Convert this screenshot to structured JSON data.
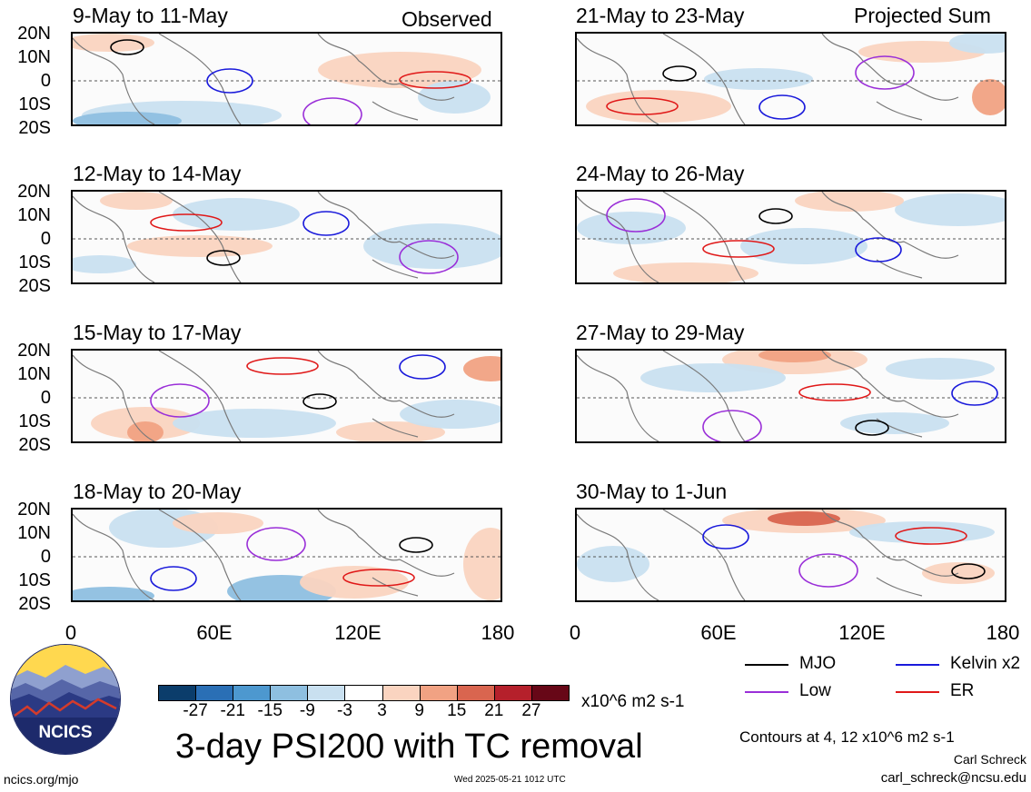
{
  "corner_labels": {
    "left": "Observed",
    "right": "Projected Sum"
  },
  "lat_ticks": [
    "20N",
    "10N",
    "0",
    "10S",
    "20S"
  ],
  "lon_ticks": [
    "0",
    "60E",
    "120E",
    "180"
  ],
  "panels": [
    {
      "title": "9-May to 11-May"
    },
    {
      "title": "21-May to 23-May"
    },
    {
      "title": "12-May to 14-May"
    },
    {
      "title": "24-May to 26-May"
    },
    {
      "title": "15-May to 17-May"
    },
    {
      "title": "27-May to 29-May"
    },
    {
      "title": "18-May to 20-May"
    },
    {
      "title": "30-May to 1-Jun"
    }
  ],
  "colorbar": {
    "colors": [
      "#0b3d6b",
      "#2a6fb5",
      "#4d98cf",
      "#8ebfe0",
      "#c9e0f0",
      "#ffffff",
      "#fad4c0",
      "#f1a283",
      "#d9654f",
      "#b5202b",
      "#670717"
    ],
    "labels": [
      "-27",
      "-21",
      "-15",
      "-9",
      "-3",
      "3",
      "9",
      "15",
      "21",
      "27"
    ],
    "units": "x10^6 m2 s-1"
  },
  "legend": [
    {
      "name": "MJO",
      "color": "#000000"
    },
    {
      "name": "Kelvin x2",
      "color": "#1a1adb"
    },
    {
      "name": "Low",
      "color": "#9a2fd8"
    },
    {
      "name": "ER",
      "color": "#e01818"
    }
  ],
  "contour_note": "Contours at 4, 12 x10^6 m2 s-1",
  "main_title": "3-day PSI200 with TC removal",
  "logo_text": "NCICS",
  "footer": {
    "site": "ncics.org/mjo",
    "timestamp": "Wed 2025-05-21 1012 UTC",
    "author": "Carl Schreck",
    "email": "carl_schreck@ncsu.edu"
  }
}
